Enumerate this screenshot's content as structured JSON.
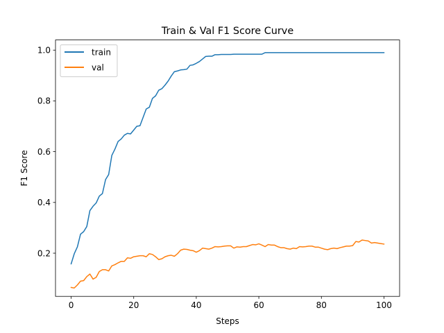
{
  "chart_data": {
    "type": "line",
    "title": "Train & Val F1 Score Curve",
    "xlabel": "Steps",
    "ylabel": "F1 Score",
    "xlim": [
      -5,
      105
    ],
    "ylim": [
      0.03,
      1.04
    ],
    "xticks": [
      0,
      20,
      40,
      60,
      80,
      100
    ],
    "yticks": [
      0.2,
      0.4,
      0.6,
      0.8,
      1.0
    ],
    "xtick_labels": [
      "0",
      "20",
      "40",
      "60",
      "80",
      "100"
    ],
    "ytick_labels": [
      "0.2",
      "0.4",
      "0.6",
      "0.8",
      "1.0"
    ],
    "grid": false,
    "legend_position": "top-left",
    "series": [
      {
        "name": "train",
        "color": "#1f77b4",
        "values": [
          0.158,
          0.198,
          0.225,
          0.275,
          0.285,
          0.305,
          0.368,
          0.385,
          0.398,
          0.425,
          0.435,
          0.49,
          0.51,
          0.585,
          0.61,
          0.64,
          0.65,
          0.665,
          0.672,
          0.67,
          0.685,
          0.7,
          0.702,
          0.735,
          0.768,
          0.775,
          0.81,
          0.82,
          0.842,
          0.848,
          0.862,
          0.878,
          0.898,
          0.915,
          0.918,
          0.922,
          0.923,
          0.925,
          0.94,
          0.942,
          0.948,
          0.955,
          0.965,
          0.975,
          0.976,
          0.976,
          0.982,
          0.982,
          0.983,
          0.983,
          0.983,
          0.983,
          0.984,
          0.984,
          0.984,
          0.984,
          0.984,
          0.984,
          0.984,
          0.984,
          0.984,
          0.984,
          0.99,
          0.99,
          0.99,
          0.99,
          0.99,
          0.99,
          0.99,
          0.99,
          0.99,
          0.99,
          0.99,
          0.99,
          0.99,
          0.99,
          0.99,
          0.99,
          0.99,
          0.99,
          0.99,
          0.99,
          0.99,
          0.99,
          0.99,
          0.99,
          0.99,
          0.99,
          0.99,
          0.99,
          0.99,
          0.99,
          0.99,
          0.99,
          0.99,
          0.99,
          0.99,
          0.99,
          0.99,
          0.99,
          0.99
        ]
      },
      {
        "name": "val",
        "color": "#ff7f0e",
        "values": [
          0.065,
          0.063,
          0.075,
          0.09,
          0.092,
          0.108,
          0.118,
          0.098,
          0.105,
          0.128,
          0.135,
          0.135,
          0.13,
          0.15,
          0.155,
          0.162,
          0.168,
          0.168,
          0.182,
          0.18,
          0.186,
          0.188,
          0.19,
          0.19,
          0.186,
          0.198,
          0.195,
          0.186,
          0.175,
          0.178,
          0.186,
          0.19,
          0.192,
          0.188,
          0.198,
          0.212,
          0.216,
          0.215,
          0.212,
          0.21,
          0.204,
          0.21,
          0.22,
          0.218,
          0.216,
          0.22,
          0.226,
          0.225,
          0.226,
          0.228,
          0.229,
          0.229,
          0.22,
          0.225,
          0.224,
          0.226,
          0.226,
          0.23,
          0.234,
          0.233,
          0.237,
          0.232,
          0.226,
          0.234,
          0.232,
          0.232,
          0.226,
          0.222,
          0.222,
          0.218,
          0.216,
          0.22,
          0.218,
          0.226,
          0.225,
          0.226,
          0.228,
          0.228,
          0.224,
          0.224,
          0.22,
          0.216,
          0.214,
          0.218,
          0.22,
          0.218,
          0.222,
          0.225,
          0.228,
          0.228,
          0.23,
          0.246,
          0.244,
          0.252,
          0.25,
          0.248,
          0.24,
          0.242,
          0.24,
          0.238,
          0.236
        ]
      }
    ]
  }
}
